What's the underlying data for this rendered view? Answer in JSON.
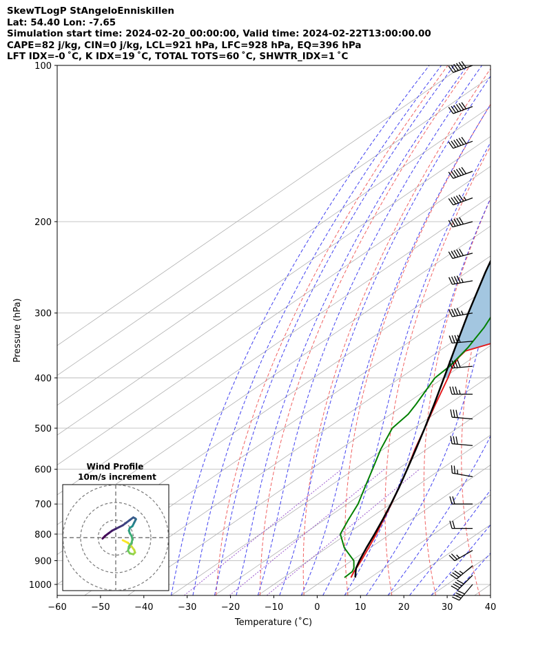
{
  "header": {
    "line1": "SkewTLogP StAngeloEnniskillen",
    "line2": "Lat: 54.40   Lon: -7.65",
    "line3": "Simulation start time: 2024-02-20_00:00:00, Valid time: 2024-02-22T13:00:00.00",
    "line4": "CAPE=82 j/kg, CIN=0 j/kg, LCL=921 hPa, LFC=928 hPa, EQ=396 hPa",
    "line5": "LFT IDX=-0 ˚C, K IDX=19 ˚C, TOTAL TOTS=60 ˚C, SHWTR_IDX=1 ˚C"
  },
  "colors": {
    "temperature": "#e31a1c",
    "dewpoint": "#008000",
    "parcel": "#000000",
    "cape_fill": "#a3c6e0",
    "dry_adiabat": "#f06060",
    "moist_adiabat": "#4040f0",
    "mixing_ratio": "#9955cc",
    "isotherm": "#b0b0b0",
    "isobar": "#b0b0b0"
  },
  "chart_data": {
    "type": "skewt",
    "xlabel": "Temperature (˚C)",
    "ylabel": "Pressure (hPa)",
    "xlim": [
      -60,
      40
    ],
    "ylim": [
      1050,
      100
    ],
    "x_ticks": [
      "−60",
      "−50",
      "−40",
      "−30",
      "−20",
      "−10",
      "0",
      "10",
      "20",
      "30",
      "40"
    ],
    "x_tick_values": [
      -60,
      -50,
      -40,
      -30,
      -20,
      -10,
      0,
      10,
      20,
      30,
      40
    ],
    "y_ticks": [
      "100",
      "200",
      "300",
      "400",
      "500",
      "600",
      "700",
      "800",
      "900",
      "1000"
    ],
    "y_tick_values": [
      100,
      200,
      300,
      400,
      500,
      600,
      700,
      800,
      900,
      1000
    ],
    "temperature": {
      "name": "Temperature",
      "p": [
        970,
        945,
        930,
        900,
        850,
        800,
        750,
        700,
        650,
        600,
        550,
        500,
        450,
        400,
        380,
        365,
        355,
        340,
        320,
        300,
        280,
        250,
        220,
        200,
        180,
        160,
        140,
        120,
        110,
        100
      ],
      "t": [
        5.5,
        4.2,
        3.6,
        2.2,
        -0.4,
        -3.2,
        -6.4,
        -9.8,
        -13.6,
        -17.8,
        -22.6,
        -27.5,
        -33.0,
        -39.0,
        -41.8,
        -43.4,
        -44.0,
        -39.5,
        -36.5,
        -36.0,
        -35.0,
        -33.5,
        -32.5,
        -32.0,
        -31.5,
        -30.0,
        -28.5,
        -27.5,
        -27.0,
        -27.0
      ]
    },
    "dewpoint": {
      "name": "Dewpoint",
      "p": [
        970,
        945,
        930,
        900,
        850,
        800,
        750,
        700,
        650,
        600,
        550,
        500,
        470,
        450,
        400,
        380,
        350,
        320,
        300,
        280,
        250,
        220,
        200,
        190,
        180,
        160,
        140,
        120,
        110,
        100
      ],
      "t": [
        4.0,
        3.8,
        3.0,
        0.5,
        -6.0,
        -11.5,
        -14.5,
        -17.5,
        -21.5,
        -25.8,
        -30.5,
        -35.0,
        -36.0,
        -37.5,
        -42.0,
        -42.5,
        -44.5,
        -47.5,
        -50.2,
        -53.0,
        -58.0,
        -62.5,
        -67.0,
        -68.5,
        -69.0,
        -69.0,
        -69.5,
        -70.0,
        -70.5,
        -71.0
      ]
    },
    "parcel": {
      "name": "Parcel profile",
      "p": [
        970,
        945,
        930,
        900,
        850,
        800,
        750,
        700,
        650,
        600,
        550,
        500,
        450,
        400,
        350,
        300,
        250,
        200,
        150,
        120,
        100
      ],
      "t": [
        6.5,
        4.6,
        3.5,
        1.8,
        -0.9,
        -3.6,
        -6.6,
        -9.9,
        -13.6,
        -17.8,
        -22.4,
        -27.5,
        -33.3,
        -39.9,
        -47.4,
        -56.0,
        -65.8,
        -77.2,
        -90.8,
        -100.8,
        -109.0
      ]
    },
    "wind_barbs": {
      "p": [
        100,
        120,
        140,
        160,
        180,
        200,
        230,
        260,
        300,
        340,
        380,
        430,
        480,
        540,
        620,
        700,
        780,
        860,
        920,
        960,
        1000
      ],
      "speed_kt": [
        60,
        60,
        60,
        60,
        55,
        50,
        50,
        45,
        45,
        40,
        40,
        35,
        30,
        30,
        25,
        20,
        20,
        25,
        35,
        40,
        40
      ],
      "direction_deg": [
        250,
        250,
        250,
        250,
        250,
        255,
        255,
        260,
        260,
        265,
        265,
        270,
        275,
        275,
        280,
        270,
        270,
        240,
        230,
        225,
        220
      ]
    },
    "hodograph": {
      "title": "Wind Profile",
      "subtitle": "10m/s increment",
      "rings_ms": [
        10,
        20,
        30
      ],
      "u": [
        4.0,
        7.0,
        9.0,
        10.5,
        11.0,
        10.0,
        8.0,
        7.0,
        7.5,
        9.0,
        9.5,
        9.0,
        8.0,
        7.5,
        8.0,
        9.5,
        10.0,
        10.5,
        11.0,
        11.5,
        11.0,
        10.0,
        8.0,
        6.0,
        4.0,
        2.0,
        0.0,
        -2.0,
        -4.0,
        -6.0,
        -7.5
      ],
      "v": [
        -1.5,
        -3.0,
        -5.0,
        -7.0,
        -8.5,
        -9.5,
        -9.0,
        -7.5,
        -5.0,
        -3.0,
        -1.0,
        1.0,
        2.5,
        4.0,
        5.5,
        6.5,
        7.5,
        8.5,
        9.5,
        10.5,
        11.0,
        11.5,
        10.0,
        8.5,
        7.0,
        6.0,
        5.0,
        4.0,
        2.5,
        1.0,
        -0.5
      ]
    }
  }
}
